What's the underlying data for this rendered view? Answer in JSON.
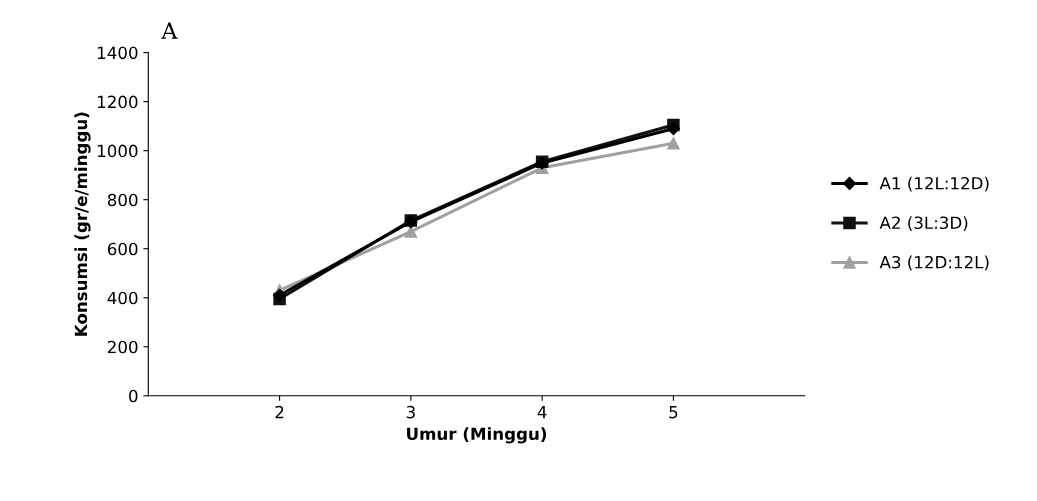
{
  "chart_data": {
    "type": "line",
    "title": "A",
    "xlabel": "Umur (Minggu)",
    "ylabel": "Konsumsi (gr/e/minggu)",
    "x": [
      2,
      3,
      4,
      5
    ],
    "xlim": [
      1,
      6
    ],
    "xticks": [
      2,
      3,
      4,
      5
    ],
    "ylim": [
      0,
      1400
    ],
    "yticks": [
      0,
      200,
      400,
      600,
      800,
      1000,
      1200,
      1400
    ],
    "series": [
      {
        "name": "A1 (12L:12D)",
        "color": "#000000",
        "marker": "diamond",
        "values": [
          410,
          710,
          950,
          1090
        ]
      },
      {
        "name": "A2 (3L:3D)",
        "color": "#111111",
        "marker": "square",
        "values": [
          395,
          715,
          955,
          1105
        ]
      },
      {
        "name": "A3 (12D:12L)",
        "color": "#a0a0a0",
        "marker": "triangle",
        "values": [
          430,
          670,
          930,
          1030
        ]
      }
    ],
    "legend": "right",
    "grid": false,
    "line_style": "solid"
  }
}
